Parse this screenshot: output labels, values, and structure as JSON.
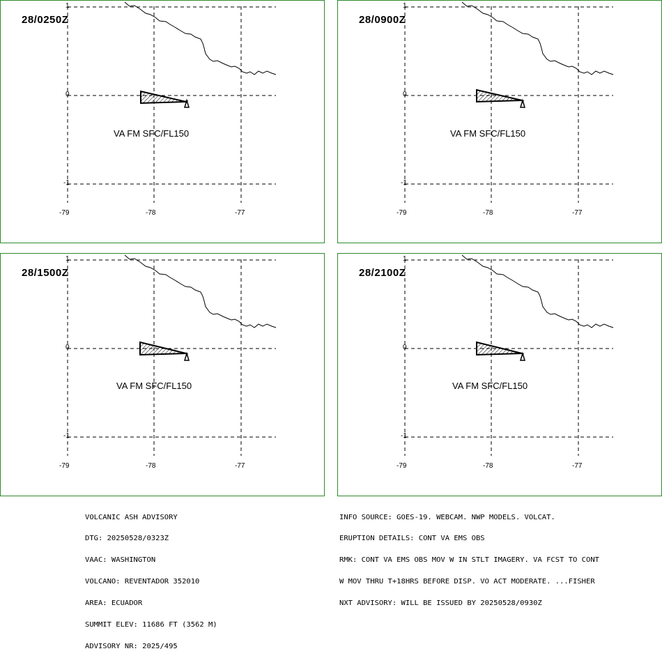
{
  "panels": [
    {
      "time_label": "28/0250Z",
      "va_label": "VA FM SFC/FL150"
    },
    {
      "time_label": "28/0900Z",
      "va_label": "VA FM SFC/FL150"
    },
    {
      "time_label": "28/1500Z",
      "va_label": "VA FM SFC/FL150"
    },
    {
      "time_label": "28/2100Z",
      "va_label": "VA FM SFC/FL150"
    }
  ],
  "axes": {
    "lon_labels": [
      "-79",
      "-78",
      "-77"
    ],
    "lat_labels": [
      "1",
      "0",
      "-1"
    ]
  },
  "advisory_left": [
    "VOLCANIC ASH ADVISORY",
    "DTG: 20250528/0323Z",
    "VAAC: WASHINGTON",
    "VOLCANO: REVENTADOR 352010",
    "AREA: ECUADOR",
    "SUMMIT ELEV: 11686 FT (3562 M)",
    "ADVISORY NR: 2025/495"
  ],
  "advisory_right": [
    "INFO SOURCE: GOES-19. WEBCAM. NWP MODELS. VOLCAT.",
    "ERUPTION DETAILS: CONT VA EMS OBS",
    "RMK: CONT VA EMS OBS MOV W IN STLT IMAGERY. VA FCST TO CONT",
    "W MOV THRU T+18HRS BEFORE DISP. VO ACT MODERATE. ...FISHER",
    "NXT ADVISORY: WILL BE ISSUED BY 20250528/0930Z"
  ],
  "colors": {
    "panel_border": "#2e8b2e"
  }
}
